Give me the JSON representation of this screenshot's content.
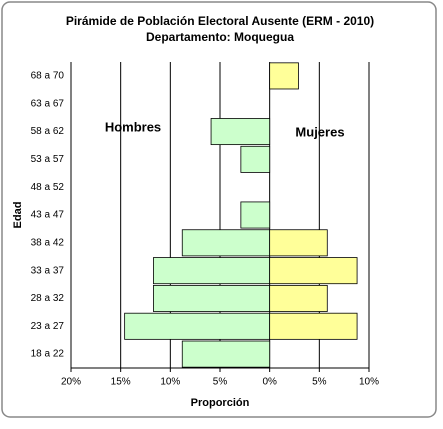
{
  "chart_data": {
    "type": "pyramid",
    "title": "Pirámide de Población  Electoral Ausente (ERM - 2010)",
    "subtitle": "Departamento: Moquegua",
    "x_label": "Proporción",
    "y_label": "Edad",
    "annotations": [
      "Hombres",
      "Mujeres"
    ],
    "categories": [
      "68 a 70",
      "63 a 67",
      "58 a 62",
      "53 a 57",
      "48 a 52",
      "43 a 47",
      "38 a 42",
      "33 a 37",
      "28 a 32",
      "23 a 27",
      "18 a 22"
    ],
    "series": [
      {
        "name": "Hombres",
        "color": "#ccffcc",
        "values": [
          0,
          0,
          -5.9,
          -2.9,
          0,
          -2.9,
          -8.8,
          -11.7,
          -11.7,
          -14.6,
          -8.8
        ]
      },
      {
        "name": "Mujeres",
        "color": "#ffff99",
        "values": [
          2.9,
          0,
          0,
          0,
          0,
          0,
          5.8,
          8.8,
          5.8,
          8.8,
          0
        ]
      }
    ],
    "xlim": [
      -20,
      10
    ],
    "xticks": [
      {
        "value": -20,
        "label": "20%"
      },
      {
        "value": -15,
        "label": "15%"
      },
      {
        "value": -10,
        "label": "10%"
      },
      {
        "value": -5,
        "label": "5%"
      },
      {
        "value": 0,
        "label": "0%"
      },
      {
        "value": 5,
        "label": "5%"
      },
      {
        "value": 10,
        "label": "10%"
      }
    ],
    "grid": true
  }
}
